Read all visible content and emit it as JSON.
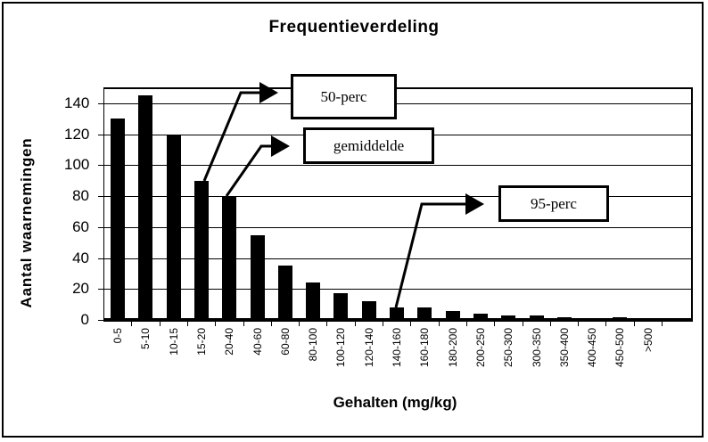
{
  "chart_data": {
    "type": "bar",
    "title": "Frequentieverdeling",
    "xlabel": "Gehalten (mg/kg)",
    "ylabel": "Aantal waarnemingen",
    "ylim": [
      0,
      150
    ],
    "yticks": [
      0,
      20,
      40,
      60,
      80,
      100,
      120,
      140
    ],
    "grid": true,
    "legend": null,
    "categories": [
      "0-5",
      "5-10",
      "10-15",
      "15-20",
      "20-40",
      "40-60",
      "60-80",
      "80-100",
      "100-120",
      "120-140",
      "140-160",
      "160-180",
      "180-200",
      "200-250",
      "250-300",
      "300-350",
      "350-400",
      "400-450",
      "450-500",
      ">500"
    ],
    "values": [
      130,
      145,
      120,
      90,
      80,
      55,
      35,
      24,
      17,
      12,
      8,
      8,
      6,
      4,
      3,
      3,
      2,
      0,
      2,
      0
    ],
    "annotations": [
      {
        "label": "50-perc",
        "points_to": "15-20"
      },
      {
        "label": "gemiddelde",
        "points_to": "20-40"
      },
      {
        "label": "95-perc",
        "points_to": "140-160"
      }
    ]
  },
  "chart": {
    "title": "Frequentieverdeling",
    "xlabel": "Gehalten (mg/kg)",
    "ylabel": "Aantal waarnemingen",
    "callouts": {
      "p50": "50-perc",
      "mean": "gemiddelde",
      "p95": "95-perc"
    }
  }
}
